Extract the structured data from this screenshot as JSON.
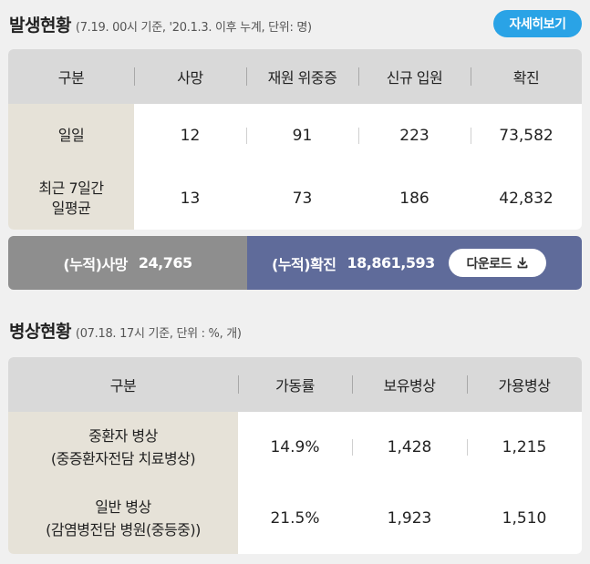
{
  "outbreak": {
    "title": "발생현황",
    "subtitle": "(7.19. 00시 기준, '20.1.3. 이후 누계, 단위: 명)",
    "detail_button": "자세히보기",
    "headers": [
      "구분",
      "사망",
      "재원 위중증",
      "신규 입원",
      "확진"
    ],
    "rows": [
      {
        "label": "일일",
        "values": [
          "12",
          "91",
          "223",
          "73,582"
        ]
      },
      {
        "label": "최근 7일간\n일평균",
        "values": [
          "13",
          "73",
          "186",
          "42,832"
        ]
      }
    ],
    "cumulative": {
      "death_label": "(누적)사망",
      "death_value": "24,765",
      "confirmed_label": "(누적)확진",
      "confirmed_value": "18,861,593",
      "download_label": "다운로드"
    }
  },
  "beds": {
    "title": "병상현황",
    "subtitle": "(07.18. 17시 기준, 단위 : %, 개)",
    "headers": [
      "구분",
      "가동률",
      "보유병상",
      "가용병상"
    ],
    "rows": [
      {
        "label": "중환자 병상\n(중증환자전담 치료병상)",
        "values": [
          "14.9%",
          "1,428",
          "1,215"
        ]
      },
      {
        "label": "일반 병상\n(감염병전담 병원(중등중))",
        "values": [
          "21.5%",
          "1,923",
          "1,510"
        ]
      }
    ]
  },
  "icons": {
    "download": "download-icon"
  },
  "colors": {
    "accent": "#2aa3e6",
    "cumulative_confirmed_bg": "#5f6b9a",
    "cumulative_death_bg": "#8e8e8e",
    "header_bg": "#d9d9d9",
    "label_bg": "#e6e2d8"
  }
}
